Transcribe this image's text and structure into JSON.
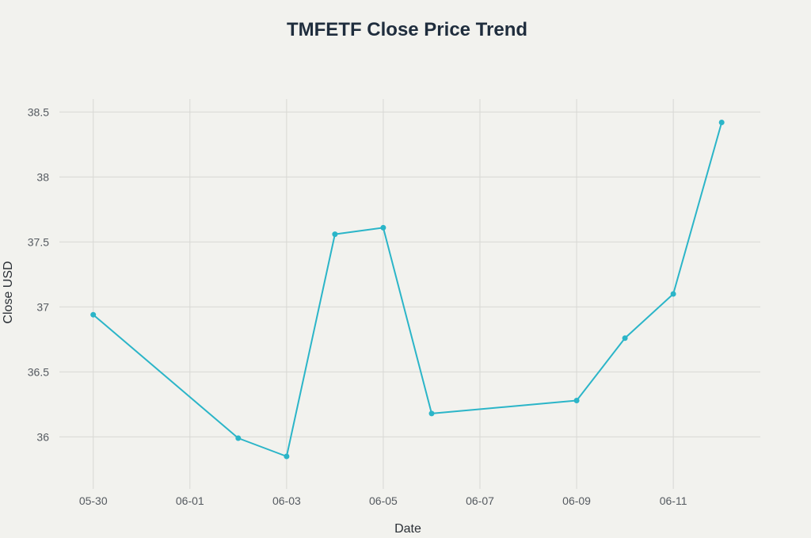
{
  "chart_data": {
    "type": "line",
    "title": "TMFETF Close Price Trend",
    "xlabel": "Date",
    "ylabel": "Close USD",
    "x_ticks": [
      {
        "label": "05-30",
        "day": 0
      },
      {
        "label": "06-01",
        "day": 2
      },
      {
        "label": "06-03",
        "day": 4
      },
      {
        "label": "06-05",
        "day": 6
      },
      {
        "label": "06-07",
        "day": 8
      },
      {
        "label": "06-09",
        "day": 10
      },
      {
        "label": "06-11",
        "day": 12
      }
    ],
    "y_ticks": [
      {
        "label": "36",
        "value": 36
      },
      {
        "label": "36.5",
        "value": 36.5
      },
      {
        "label": "37",
        "value": 37
      },
      {
        "label": "37.5",
        "value": 37.5
      },
      {
        "label": "38",
        "value": 38
      },
      {
        "label": "38.5",
        "value": 38.5
      }
    ],
    "xlim_days": [
      -0.7,
      13.8
    ],
    "ylim": [
      35.6,
      38.6
    ],
    "series": [
      {
        "color": "#2bb5c8",
        "points": [
          {
            "date": "05-30",
            "day": 0,
            "value": 36.94
          },
          {
            "date": "06-02",
            "day": 3,
            "value": 35.99
          },
          {
            "date": "06-03",
            "day": 4,
            "value": 35.85
          },
          {
            "date": "06-04",
            "day": 5,
            "value": 37.56
          },
          {
            "date": "06-05",
            "day": 6,
            "value": 37.61
          },
          {
            "date": "06-06",
            "day": 7,
            "value": 36.18
          },
          {
            "date": "06-09",
            "day": 10,
            "value": 36.28
          },
          {
            "date": "06-10",
            "day": 11,
            "value": 36.76
          },
          {
            "date": "06-11",
            "day": 12,
            "value": 37.1
          },
          {
            "date": "06-12",
            "day": 13,
            "value": 38.42
          }
        ]
      }
    ],
    "grid": true
  }
}
